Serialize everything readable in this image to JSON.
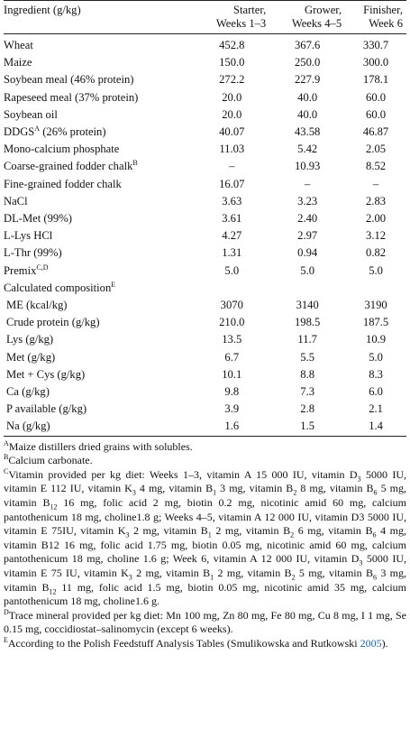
{
  "table": {
    "header": [
      "Ingredient (g/kg)",
      "Starter,\nWeeks 1–3",
      "Grower,\nWeeks 4–5",
      "Finisher,\nWeek 6"
    ],
    "rows": [
      [
        "Wheat",
        "452.8",
        "367.6",
        "330.7"
      ],
      [
        "Maize",
        "150.0",
        "250.0",
        "300.0"
      ],
      [
        "Soybean meal (46% protein)",
        "272.2",
        "227.9",
        "178.1"
      ],
      [
        "Rapeseed meal (37% protein)",
        "20.0",
        "40.0",
        "60.0"
      ],
      [
        "Soybean oil",
        "20.0",
        "40.0",
        "60.0"
      ],
      [
        [
          "DDGS",
          {
            "sup": "A"
          },
          " (26% protein)"
        ],
        "40.07",
        "43.58",
        "46.87"
      ],
      [
        "Mono-calcium phosphate",
        "11.03",
        "5.42",
        "2.05"
      ],
      [
        [
          "Coarse-grained fodder chalk",
          {
            "sup": "B"
          }
        ],
        "–",
        "10.93",
        "8.52"
      ],
      [
        "Fine-grained fodder chalk",
        "16.07",
        "–",
        "–"
      ],
      [
        "NaCl",
        "3.63",
        "3.23",
        "2.83"
      ],
      [
        "DL-Met (99%)",
        "3.61",
        "2.40",
        "2.00"
      ],
      [
        "L-Lys HCl",
        "4.27",
        "2.97",
        "3.12"
      ],
      [
        "L-Thr (99%)",
        "1.31",
        "0.94",
        "0.82"
      ],
      [
        [
          "Premix",
          {
            "sup": "C,D"
          }
        ],
        "5.0",
        "5.0",
        "5.0"
      ]
    ],
    "composition_title": [
      "Calculated composition",
      {
        "sup": "E"
      }
    ],
    "composition_rows": [
      [
        "ME (kcal/kg)",
        "3070",
        "3140",
        "3190"
      ],
      [
        "Crude protein (g/kg)",
        "210.0",
        "198.5",
        "187.5"
      ],
      [
        "Lys (g/kg)",
        "13.5",
        "11.7",
        "10.9"
      ],
      [
        "Met (g/kg)",
        "6.7",
        "5.5",
        "5.0"
      ],
      [
        "Met + Cys (g/kg)",
        "10.1",
        "8.8",
        "8.3"
      ],
      [
        "Ca (g/kg)",
        "9.8",
        "7.3",
        "6.0"
      ],
      [
        "P available (g/kg)",
        "3.9",
        "2.8",
        "2.1"
      ],
      [
        "Na (g/kg)",
        "1.6",
        "1.5",
        "1.4"
      ]
    ]
  },
  "footnotes": [
    [
      {
        "sup": "A"
      },
      "Maize distillers dried grains with solubles."
    ],
    [
      {
        "sup": "B"
      },
      "Calcium carbonate."
    ],
    [
      {
        "sup": "C"
      },
      "Vitamin provided per kg diet: Weeks 1–3, vitamin A 15 000 IU, vitamin D",
      {
        "sub": "3"
      },
      " 5000 IU, vitamin E 112 IU, vitamin K",
      {
        "sub": "3"
      },
      " 4 mg, vitamin B",
      {
        "sub": "1"
      },
      " 3 mg, vitamin B",
      {
        "sub": "2"
      },
      " 8 mg, vitamin B",
      {
        "sub": "6"
      },
      " 5 mg, vitamin B",
      {
        "sub": "12"
      },
      " 16 mg, folic acid 2 mg, biotin 0.2 mg, nicotinic amid 60 mg, calcium pantothenicum 18 mg, choline1.8 g; Weeks 4–5, vitamin A 12 000 IU, vitamin D3 5000 IU, vitamin E 75IU, vitamin K",
      {
        "sub": "3"
      },
      " 2 mg, vitamin B",
      {
        "sub": "1"
      },
      " 2 mg, vitamin B",
      {
        "sub": "2"
      },
      " 6 mg, vitamin B",
      {
        "sub": "6"
      },
      " 4 mg, vitamin B12 16 mg, folic acid 1.75 mg, biotin 0.05 mg, nicotinic amid 60 mg, calcium pantothenicum 18 mg, choline 1.6 g; Week 6, vitamin A 12 000 IU, vitamin D",
      {
        "sub": "3"
      },
      " 5000 IU, vitamin E 75 IU, vitamin K",
      {
        "sub": "3"
      },
      " 2 mg, vitamin B",
      {
        "sub": "1"
      },
      " 2 mg, vitamin B",
      {
        "sub": "2"
      },
      " 5 mg, vitamin B",
      {
        "sub": "6"
      },
      " 3 mg, vitamin B",
      {
        "sub": "12"
      },
      " 11 mg, folic acid 1.5 mg, biotin 0.05 mg, nicotinic amid 35 mg, calcium pantothenicum 18 mg, choline1.6 g."
    ],
    [
      {
        "sup": "D"
      },
      "Trace mineral provided per kg diet: Mn 100 mg, Zn 80 mg, Fe 80 mg, Cu 8 mg, I 1 mg, Se 0.15 mg, coccidiostat–salinomycin (except 6 weeks)."
    ],
    [
      {
        "sup": "E"
      },
      "According to the Polish Feedstuff Analysis Tables (Smulikowska and Rutkowski ",
      {
        "cite": "2005"
      },
      ")."
    ]
  ]
}
